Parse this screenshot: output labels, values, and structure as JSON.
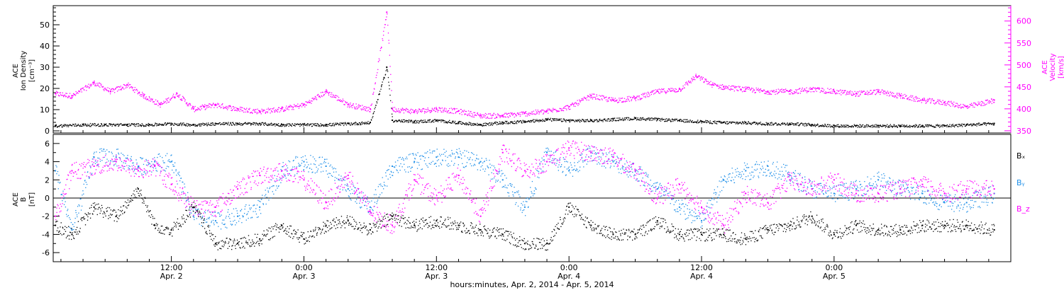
{
  "colors": {
    "density": "#000000",
    "velocity": "#ff00ff",
    "bx": "#000000",
    "by": "#1f8fe8",
    "bz": "#ff00ff",
    "background": "#ffffff",
    "axis": "#000000"
  },
  "panels": {
    "top": {
      "left_title": [
        "ACE",
        "Ion Density",
        "[cm⁻³]"
      ],
      "right_title": [
        "ACE",
        "Velocity",
        "[km/s]"
      ]
    },
    "bottom": {
      "left_title": [
        "ACE",
        "B",
        "[nT]"
      ],
      "legend": [
        "Bₓ",
        "Bᵧ",
        "B_z"
      ]
    }
  },
  "xaxis": {
    "label": "hours:minutes, Apr.  2, 2014 - Apr.  5, 2014",
    "ticks": [
      {
        "time": "12:00",
        "day": "Apr. 2"
      },
      {
        "time": "0:00",
        "day": "Apr. 3"
      },
      {
        "time": "12:00",
        "day": "Apr. 3"
      },
      {
        "time": "0:00",
        "day": "Apr. 4"
      },
      {
        "time": "12:00",
        "day": "Apr. 4"
      },
      {
        "time": "0:00",
        "day": "Apr. 5"
      }
    ]
  },
  "chart_data": [
    {
      "type": "scatter",
      "title": "",
      "xlabel": "hours:minutes, Apr.  2, 2014 - Apr.  5, 2014",
      "ylabel": "ACE Ion Density [cm⁻³]",
      "y2label": "ACE Velocity [km/s]",
      "xlim_hours_from_apr2_0000": [
        1.3,
        88.0
      ],
      "ylim": [
        -1,
        59
      ],
      "y2lim": [
        345,
        635
      ],
      "yticks": [
        0,
        10,
        20,
        30,
        40,
        50
      ],
      "y2ticks": [
        350,
        400,
        450,
        500,
        550,
        600
      ],
      "grid": false,
      "series": [
        {
          "name": "Ion Density",
          "axis": "left",
          "x_hours": [
            1.5,
            4,
            6,
            8,
            10,
            12,
            14,
            16,
            18,
            20,
            22,
            24,
            26,
            28,
            30,
            31.5,
            32,
            34,
            36,
            38,
            40,
            42,
            44,
            46,
            48,
            50,
            52,
            54,
            56,
            58,
            60,
            62,
            64,
            66,
            68,
            70,
            72,
            74,
            76,
            78,
            80,
            82,
            84,
            86.5
          ],
          "values": [
            2.5,
            3.0,
            3.0,
            3.0,
            3.0,
            3.5,
            3.0,
            3.5,
            3.5,
            3.5,
            3.0,
            3.0,
            3.0,
            3.5,
            4.0,
            30,
            5.0,
            4.5,
            5.0,
            4.0,
            3.0,
            4.0,
            4.5,
            5.5,
            5.0,
            5.0,
            5.5,
            6.0,
            5.5,
            5.0,
            4.5,
            4.0,
            4.0,
            3.5,
            3.5,
            3.0,
            2.5,
            2.5,
            2.5,
            2.5,
            2.5,
            2.5,
            3.0,
            3.5
          ]
        },
        {
          "name": "Velocity",
          "axis": "right",
          "x_hours": [
            1.5,
            3,
            5,
            6.5,
            8,
            9.5,
            11,
            12.5,
            14,
            15,
            16,
            18,
            20,
            22,
            24,
            26,
            28,
            30,
            31.5,
            32,
            34,
            36,
            38,
            40,
            42,
            44,
            46,
            48,
            50,
            52,
            54,
            56,
            58,
            59.5,
            61,
            62,
            64,
            66,
            68,
            70,
            72,
            74,
            76,
            78,
            80,
            82,
            84,
            86.5
          ],
          "values": [
            435,
            430,
            460,
            440,
            455,
            430,
            410,
            435,
            400,
            405,
            410,
            400,
            395,
            400,
            410,
            440,
            410,
            400,
            620,
            400,
            395,
            400,
            395,
            385,
            385,
            390,
            395,
            405,
            430,
            420,
            425,
            440,
            445,
            475,
            455,
            450,
            445,
            440,
            440,
            445,
            440,
            435,
            440,
            430,
            420,
            415,
            405,
            420
          ]
        }
      ]
    },
    {
      "type": "scatter",
      "title": "",
      "xlabel": "hours:minutes, Apr.  2, 2014 - Apr.  5, 2014",
      "ylabel": "ACE B [nT]",
      "xlim_hours_from_apr2_0000": [
        1.3,
        88.0
      ],
      "ylim": [
        -7,
        7
      ],
      "yticks": [
        -6,
        -4,
        -2,
        0,
        2,
        4,
        6
      ],
      "grid": false,
      "legend_position": "right",
      "series": [
        {
          "name": "Bₓ",
          "x_hours": [
            1.5,
            3,
            5,
            7,
            9,
            10.5,
            12,
            14,
            16,
            18,
            20,
            22,
            24,
            26,
            28,
            30,
            32,
            34,
            36,
            38,
            40,
            42,
            44,
            46,
            48,
            50,
            52,
            54,
            56,
            58,
            60,
            62,
            64,
            66,
            68,
            70,
            72,
            74,
            76,
            78,
            80,
            82,
            84,
            86.5
          ],
          "values": [
            -3.0,
            -4.0,
            -1.0,
            -2.0,
            1.0,
            -3.0,
            -3.5,
            -1.0,
            -5.0,
            -5.0,
            -4.5,
            -3.0,
            -4.5,
            -3.0,
            -2.5,
            -3.5,
            -2.0,
            -3.0,
            -2.5,
            -3.0,
            -3.5,
            -4.0,
            -5.0,
            -5.0,
            -1.0,
            -3.0,
            -4.0,
            -4.0,
            -2.5,
            -4.0,
            -4.0,
            -4.0,
            -4.5,
            -3.5,
            -3.0,
            -2.0,
            -4.0,
            -3.0,
            -3.5,
            -3.5,
            -3.0,
            -3.0,
            -3.0,
            -3.5
          ]
        },
        {
          "name": "Bᵧ",
          "x_hours": [
            1.5,
            3,
            5,
            7,
            9,
            10.5,
            12,
            14,
            16,
            18,
            20,
            22,
            24,
            26,
            28,
            30,
            32,
            34,
            36,
            38,
            40,
            42,
            44,
            46,
            48,
            50,
            52,
            54,
            56,
            58,
            60,
            62,
            64,
            66,
            68,
            70,
            72,
            74,
            76,
            78,
            80,
            82,
            84,
            86.5
          ],
          "values": [
            3.0,
            -3.5,
            4.5,
            4.5,
            3.5,
            4.0,
            4.0,
            -2.0,
            -2.5,
            -2.0,
            -1.0,
            3.0,
            4.0,
            3.5,
            1.0,
            -1.0,
            3.5,
            4.0,
            4.5,
            4.5,
            4.0,
            2.0,
            -1.0,
            5.0,
            3.0,
            5.0,
            4.0,
            3.0,
            1.0,
            -1.0,
            -2.5,
            2.0,
            3.0,
            3.5,
            2.5,
            1.0,
            0.5,
            1.0,
            2.0,
            1.0,
            0.5,
            -0.5,
            -0.5,
            0.5
          ]
        },
        {
          "name": "B_z",
          "x_hours": [
            1.5,
            3,
            5,
            7,
            9,
            10.5,
            12,
            14,
            16,
            18,
            20,
            22,
            24,
            26,
            28,
            30,
            32,
            34,
            36,
            38,
            40,
            42,
            44,
            46,
            48,
            50,
            52,
            54,
            56,
            58,
            60,
            62,
            64,
            66,
            68,
            70,
            72,
            74,
            76,
            78,
            80,
            82,
            84,
            86.5
          ],
          "values": [
            -2.0,
            3.0,
            3.5,
            4.0,
            3.0,
            3.5,
            1.5,
            -1.0,
            -1.0,
            1.0,
            2.5,
            3.0,
            2.0,
            -0.5,
            2.5,
            -1.5,
            -3.0,
            2.0,
            0.0,
            2.5,
            -2.0,
            5.0,
            3.0,
            4.0,
            5.5,
            5.0,
            4.5,
            3.0,
            0.0,
            1.5,
            -1.0,
            -3.0,
            0.5,
            -0.5,
            2.0,
            1.0,
            2.0,
            0.5,
            0.5,
            1.0,
            1.5,
            0.5,
            1.0,
            1.0
          ]
        }
      ]
    }
  ]
}
